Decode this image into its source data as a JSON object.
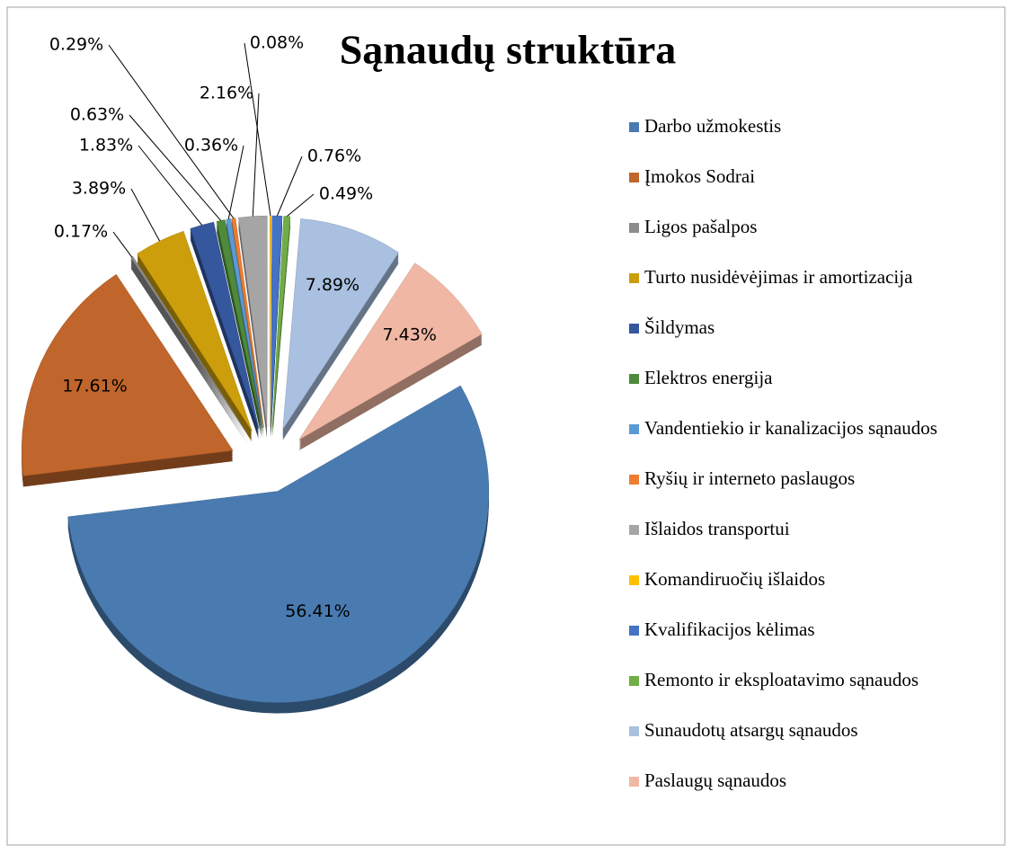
{
  "chart_data": {
    "type": "pie",
    "title": "Sąnaudų struktūra",
    "categories": [
      "Darbo užmokestis",
      "Įmokos Sodrai",
      "Ligos pašalpos",
      "Turto nusidėvėjimas ir amortizacija",
      "Šildymas",
      "Elektros energija",
      "Vandentiekio ir kanalizacijos sąnaudos",
      "Ryšių ir interneto paslaugos",
      "Išlaidos transportui",
      "Komandiruočių išlaidos",
      "Kvalifikacijos kėlimas",
      "Remonto ir eksploatavimo sąnaudos",
      "Sunaudotų atsargų sąnaudos",
      "Paslaugų sąnaudos"
    ],
    "values": [
      56.41,
      17.61,
      0.17,
      3.89,
      1.83,
      0.63,
      0.36,
      0.29,
      2.16,
      0.08,
      0.76,
      0.49,
      7.89,
      7.43
    ],
    "value_labels": [
      "56.41%",
      "17.61%",
      "0.17%",
      "3.89%",
      "1.83%",
      "0.63%",
      "0.36%",
      "0.29%",
      "2.16%",
      "0.08%",
      "0.76%",
      "0.49%",
      "7.89%",
      "7.43%"
    ],
    "colors": [
      "#4a7bb0",
      "#c0652b",
      "#8c8c8c",
      "#cc9e0c",
      "#35579e",
      "#4e8a3a",
      "#5b9bd5",
      "#ed7d31",
      "#a5a5a5",
      "#ffc000",
      "#4472c4",
      "#70ad47",
      "#a9c0e0",
      "#f0b8a4"
    ],
    "legend": "right"
  }
}
